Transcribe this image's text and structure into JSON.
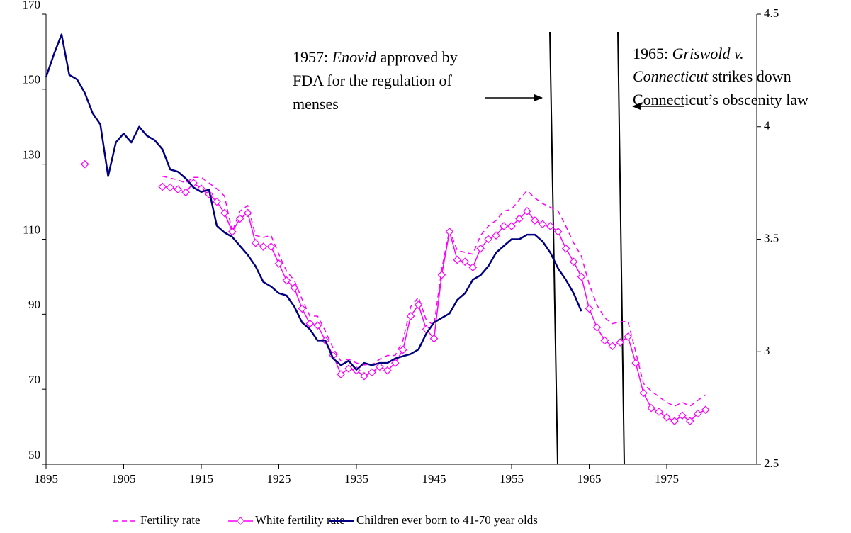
{
  "chart_data": {
    "type": "line",
    "x": [
      1895,
      1896,
      1897,
      1898,
      1899,
      1900,
      1901,
      1902,
      1903,
      1904,
      1905,
      1906,
      1907,
      1908,
      1909,
      1910,
      1911,
      1912,
      1913,
      1914,
      1915,
      1916,
      1917,
      1918,
      1919,
      1920,
      1921,
      1922,
      1923,
      1924,
      1925,
      1926,
      1927,
      1928,
      1929,
      1930,
      1931,
      1932,
      1933,
      1934,
      1935,
      1936,
      1937,
      1938,
      1939,
      1940,
      1941,
      1942,
      1943,
      1944,
      1945,
      1946,
      1947,
      1948,
      1949,
      1950,
      1951,
      1952,
      1953,
      1954,
      1955,
      1956,
      1957,
      1958,
      1959,
      1960,
      1961,
      1962,
      1963,
      1964,
      1965,
      1966,
      1967,
      1968,
      1969,
      1970,
      1971,
      1972,
      1973,
      1974,
      1975,
      1976,
      1977,
      1978,
      1979,
      1980
    ],
    "xlim": [
      1895,
      1986.6
    ],
    "xticks": [
      1895,
      1905,
      1915,
      1925,
      1935,
      1945,
      1955,
      1965,
      1975
    ],
    "ylim": [
      50,
      170
    ],
    "yticks": [
      50,
      70,
      90,
      110,
      130,
      150,
      170
    ],
    "y2lim": [
      2.5,
      4.5
    ],
    "y2ticks": [
      2.5,
      3,
      3.5,
      4,
      4.5
    ],
    "series": [
      {
        "name": "Fertility rate",
        "color": "#ff00ff",
        "style": "dashed",
        "values": [
          null,
          null,
          null,
          null,
          null,
          null,
          null,
          null,
          null,
          null,
          null,
          null,
          null,
          null,
          null,
          126.8,
          126.3,
          125.8,
          125,
          126.5,
          126.5,
          125,
          123.5,
          121.5,
          112,
          117.5,
          119,
          111,
          110.5,
          111,
          106,
          101.5,
          99,
          94,
          89.5,
          89.5,
          85.5,
          81,
          77.5,
          78,
          77,
          76.5,
          76.5,
          78,
          79,
          79,
          83,
          92,
          94.5,
          88.5,
          87,
          102,
          112.5,
          107,
          106.5,
          106,
          111,
          113.5,
          115,
          117.5,
          118,
          120.5,
          123,
          121,
          119.5,
          118.5,
          117.5,
          113.5,
          109,
          105.5,
          98,
          92.5,
          89,
          87.5,
          88,
          88,
          80,
          71.5,
          69.5,
          68,
          66.5,
          65.5,
          66.5,
          65.5,
          67,
          68.5
        ]
      },
      {
        "name": "White fertility rate",
        "color": "#ff00ff",
        "style": "diamond",
        "values": [
          null,
          null,
          null,
          null,
          null,
          130,
          null,
          null,
          null,
          null,
          null,
          null,
          null,
          null,
          null,
          124,
          123.8,
          123.3,
          122.5,
          125,
          123.5,
          122,
          120,
          117,
          112,
          115.5,
          117,
          109,
          108,
          108,
          103.5,
          99,
          97,
          91.5,
          87.5,
          87,
          83,
          79,
          74,
          75.5,
          75,
          73.5,
          74.5,
          76,
          75,
          77,
          80.5,
          89.5,
          92.5,
          86,
          83.5,
          100.5,
          112,
          104.5,
          104,
          102.5,
          107.5,
          110,
          111,
          113.5,
          113.5,
          115.5,
          117.5,
          115,
          114,
          113.5,
          112,
          107.5,
          104,
          100,
          91.5,
          86.5,
          83,
          81.5,
          82.5,
          84,
          77,
          69,
          65,
          64,
          62.5,
          61.5,
          63,
          61.5,
          63.5,
          64.5
        ]
      },
      {
        "name": "Children ever born to 41-70 year olds",
        "color": "#000080",
        "style": "solid",
        "axis": "y2",
        "values": [
          4.22,
          4.32,
          4.41,
          4.23,
          4.21,
          4.15,
          4.06,
          4.01,
          3.78,
          3.93,
          3.97,
          3.93,
          4.0,
          3.96,
          3.94,
          3.9,
          3.81,
          3.8,
          3.77,
          3.73,
          3.71,
          3.72,
          3.56,
          3.53,
          3.51,
          3.47,
          3.43,
          3.38,
          3.31,
          3.29,
          3.26,
          3.25,
          3.2,
          3.13,
          3.1,
          3.05,
          3.05,
          2.97,
          2.94,
          2.96,
          2.92,
          2.95,
          2.94,
          2.95,
          2.95,
          2.97,
          2.98,
          2.99,
          3.01,
          3.08,
          3.13,
          3.15,
          3.17,
          3.23,
          3.26,
          3.32,
          3.34,
          3.38,
          3.44,
          3.47,
          3.5,
          3.5,
          3.52,
          3.52,
          3.49,
          3.44,
          3.37,
          3.32,
          3.26,
          3.18,
          null,
          null,
          null,
          null,
          null,
          null,
          null,
          null,
          null,
          null,
          null,
          null,
          null,
          null,
          null,
          null
        ]
      }
    ],
    "annotations": [
      {
        "lines": [
          [
            "1957: ",
            "Enovid",
            " approved by"
          ],
          [
            "FDA for the regulation of"
          ],
          [
            "menses"
          ]
        ]
      },
      {
        "lines": [
          [
            "1965: ",
            "Griswold v."
          ],
          [
            "Connecticut",
            " strikes down"
          ],
          [
            "Connecticut’s obscenity law"
          ]
        ]
      }
    ],
    "legend": "bottom"
  }
}
